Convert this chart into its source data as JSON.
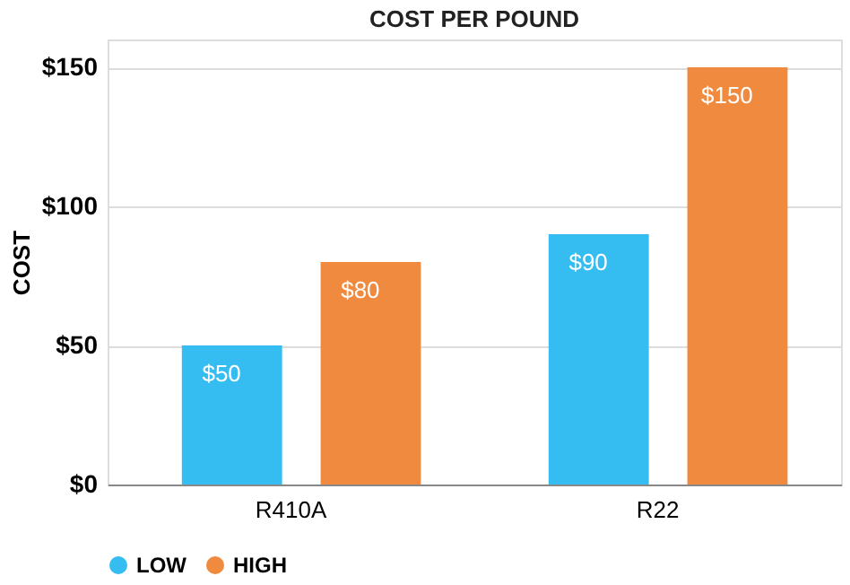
{
  "chart_data": {
    "type": "bar",
    "title": "COST PER POUND",
    "ylabel": "COST",
    "categories": [
      "R410A",
      "R22"
    ],
    "series": [
      {
        "name": "LOW",
        "color": "#35bdf2",
        "values": [
          50,
          90
        ],
        "value_labels": [
          "$50",
          "$90"
        ]
      },
      {
        "name": "HIGH",
        "color": "#f08a3e",
        "values": [
          80,
          150
        ],
        "value_labels": [
          "$80",
          "$150"
        ]
      }
    ],
    "ylim": [
      0,
      160
    ],
    "yticks": [
      {
        "value": 0,
        "label": "$0"
      },
      {
        "value": 50,
        "label": "$50"
      },
      {
        "value": 100,
        "label": "$100"
      },
      {
        "value": 150,
        "label": "$150"
      }
    ],
    "grid": "y",
    "legend": "bottom"
  }
}
